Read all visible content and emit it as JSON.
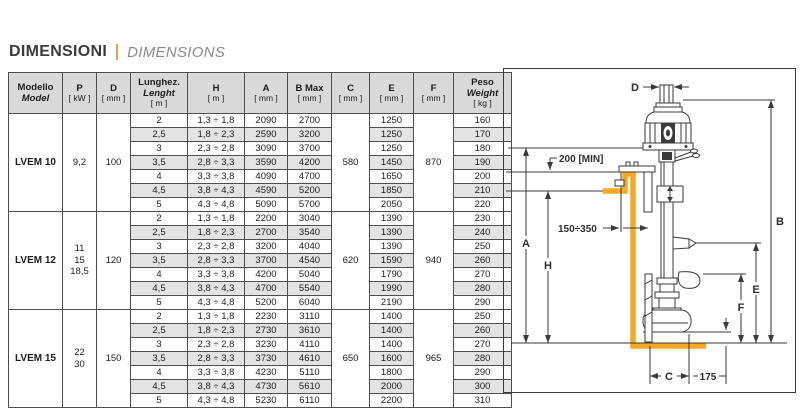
{
  "page": {
    "title_it": "DIMENSIONI",
    "title_en": "DIMENSIONS"
  },
  "table": {
    "head": {
      "model_it": "Modello",
      "model_en": "Model",
      "p": "P",
      "p_unit": "[ kW ]",
      "d": "D",
      "d_unit": "[ mm ]",
      "len_it": "Lunghez.",
      "len_en": "Lenght",
      "len_unit": "[ m ]",
      "h": "H",
      "h_unit": "[ m ]",
      "a": "A",
      "a_unit": "[ mm ]",
      "bmax": "B Max",
      "bmax_unit": "[ mm ]",
      "c": "C",
      "c_unit": "[ mm ]",
      "e": "E",
      "e_unit": "[ mm ]",
      "f": "F",
      "f_unit": "[ mm ]",
      "peso_it": "Peso",
      "peso_en": "Weight",
      "peso_unit": "[ kg ]"
    },
    "groups": [
      {
        "model": "LVEM 10",
        "p": [
          "9,2"
        ],
        "d": "100",
        "c": "580",
        "f": "870",
        "rows": [
          {
            "len": "2",
            "h": "1,3 ÷ 1,8",
            "a": "2090",
            "bmax": "2700",
            "e": "1250",
            "w": "160"
          },
          {
            "len": "2,5",
            "h": "1,8 ÷ 2,3",
            "a": "2590",
            "bmax": "3200",
            "e": "1250",
            "w": "170"
          },
          {
            "len": "3",
            "h": "2,3 ÷ 2,8",
            "a": "3090",
            "bmax": "3700",
            "e": "1250",
            "w": "180"
          },
          {
            "len": "3,5",
            "h": "2,8 ÷ 3,3",
            "a": "3590",
            "bmax": "4200",
            "e": "1450",
            "w": "190"
          },
          {
            "len": "4",
            "h": "3,3 ÷ 3,8",
            "a": "4090",
            "bmax": "4700",
            "e": "1650",
            "w": "200"
          },
          {
            "len": "4,5",
            "h": "3,8 ÷ 4,3",
            "a": "4590",
            "bmax": "5200",
            "e": "1850",
            "w": "210"
          },
          {
            "len": "5",
            "h": "4,3 ÷ 4,8",
            "a": "5090",
            "bmax": "5700",
            "e": "2050",
            "w": "220"
          }
        ]
      },
      {
        "model": "LVEM 12",
        "p": [
          "11",
          "15",
          "18,5"
        ],
        "d": "120",
        "c": "620",
        "f": "940",
        "rows": [
          {
            "len": "2",
            "h": "1,3 ÷ 1,8",
            "a": "2200",
            "bmax": "3040",
            "e": "1390",
            "w": "230"
          },
          {
            "len": "2,5",
            "h": "1,8 ÷ 2,3",
            "a": "2700",
            "bmax": "3540",
            "e": "1390",
            "w": "240"
          },
          {
            "len": "3",
            "h": "2,3 ÷ 2,8",
            "a": "3200",
            "bmax": "4040",
            "e": "1390",
            "w": "250"
          },
          {
            "len": "3,5",
            "h": "2,8 ÷ 3,3",
            "a": "3700",
            "bmax": "4540",
            "e": "1590",
            "w": "260"
          },
          {
            "len": "4",
            "h": "3,3 ÷ 3,8",
            "a": "4200",
            "bmax": "5040",
            "e": "1790",
            "w": "270"
          },
          {
            "len": "4,5",
            "h": "3,8 ÷ 4,3",
            "a": "4700",
            "bmax": "5540",
            "e": "1990",
            "w": "280"
          },
          {
            "len": "5",
            "h": "4,3 ÷ 4,8",
            "a": "5200",
            "bmax": "6040",
            "e": "2190",
            "w": "290"
          }
        ]
      },
      {
        "model": "LVEM 15",
        "p": [
          "22",
          "30"
        ],
        "d": "150",
        "c": "650",
        "f": "965",
        "rows": [
          {
            "len": "2",
            "h": "1,3 ÷ 1,8",
            "a": "2230",
            "bmax": "3110",
            "e": "1400",
            "w": "250"
          },
          {
            "len": "2,5",
            "h": "1,8 ÷ 2,3",
            "a": "2730",
            "bmax": "3610",
            "e": "1400",
            "w": "260"
          },
          {
            "len": "3",
            "h": "2,3 ÷ 2,8",
            "a": "3230",
            "bmax": "4110",
            "e": "1400",
            "w": "270"
          },
          {
            "len": "3,5",
            "h": "2,8 ÷ 3,3",
            "a": "3730",
            "bmax": "4610",
            "e": "1600",
            "w": "280"
          },
          {
            "len": "4",
            "h": "3,3 ÷ 3,8",
            "a": "4230",
            "bmax": "5110",
            "e": "1800",
            "w": "290"
          },
          {
            "len": "4,5",
            "h": "3,8 ÷ 4,3",
            "a": "4730",
            "bmax": "5610",
            "e": "2000",
            "w": "300"
          },
          {
            "len": "5",
            "h": "4,3 ÷ 4,8",
            "a": "5230",
            "bmax": "6110",
            "e": "2200",
            "w": "310"
          }
        ]
      }
    ]
  },
  "diagram": {
    "labels": {
      "d": "D",
      "b": "B",
      "a": "A",
      "h": "H",
      "e": "E",
      "f": "F",
      "c": "C",
      "min_clearance": "200 [MIN]",
      "wall_range": "150÷350",
      "base_offset": "175"
    },
    "wall_color": "#F7A823",
    "line_color": "#3a3a3a"
  }
}
